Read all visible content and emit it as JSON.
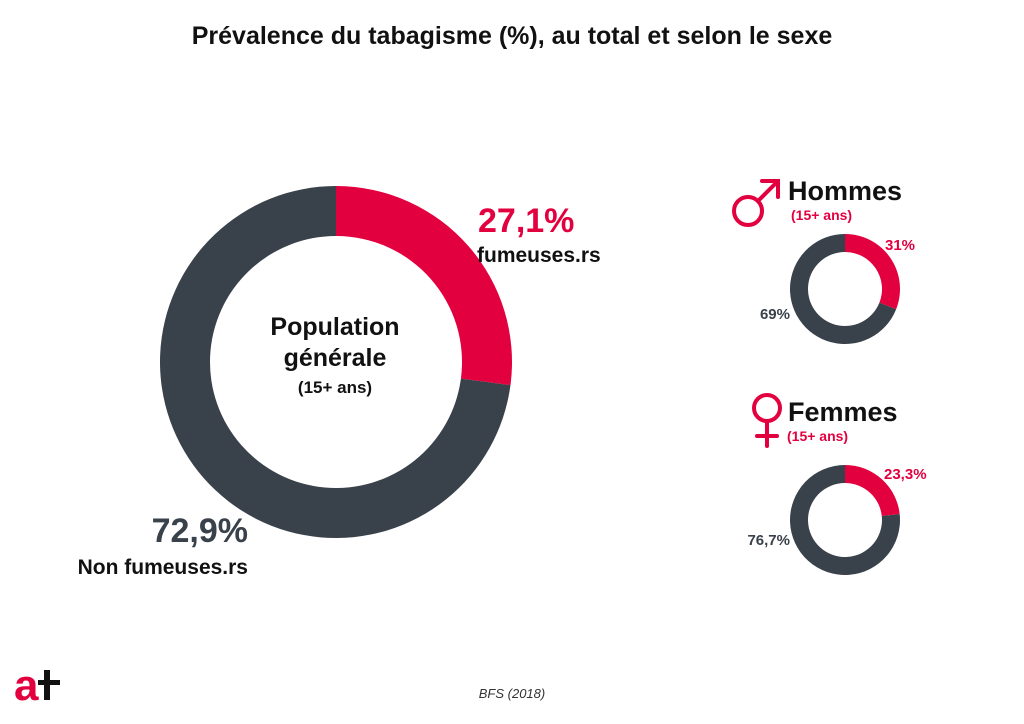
{
  "title": "Prévalence du tabagisme (%), au total et selon le sexe",
  "colors": {
    "smoker": "#E3003F",
    "non_smoker": "#39414A",
    "text": "#111111"
  },
  "source": "BFS (2018)",
  "logo_text": "at",
  "main": {
    "center_line1": "Population",
    "center_line2": "générale",
    "center_sub": "(15+ ans)",
    "smoker_pct": "27,1%",
    "smoker_label": "fumeuses.rs",
    "non_smoker_pct": "72,9%",
    "non_smoker_label": "Non fumeuses.rs"
  },
  "men": {
    "title": "Hommes",
    "sub": "(15+ ans)",
    "icon": "male-symbol-icon",
    "smoker_pct": "31%",
    "non_smoker_pct": "69%"
  },
  "women": {
    "title": "Femmes",
    "sub": "(15+ ans)",
    "icon": "female-symbol-icon",
    "smoker_pct": "23,3%",
    "non_smoker_pct": "76,7%"
  },
  "chart_data": [
    {
      "type": "pie",
      "title": "Population générale (15+ ans)",
      "categories": [
        "fumeuses.rs",
        "Non fumeuses.rs"
      ],
      "values": [
        27.1,
        72.9
      ]
    },
    {
      "type": "pie",
      "title": "Hommes (15+ ans)",
      "categories": [
        "fumeuses.rs",
        "Non fumeuses.rs"
      ],
      "values": [
        31,
        69
      ]
    },
    {
      "type": "pie",
      "title": "Femmes (15+ ans)",
      "categories": [
        "fumeuses.rs",
        "Non fumeuses.rs"
      ],
      "values": [
        23.3,
        76.7
      ]
    }
  ]
}
